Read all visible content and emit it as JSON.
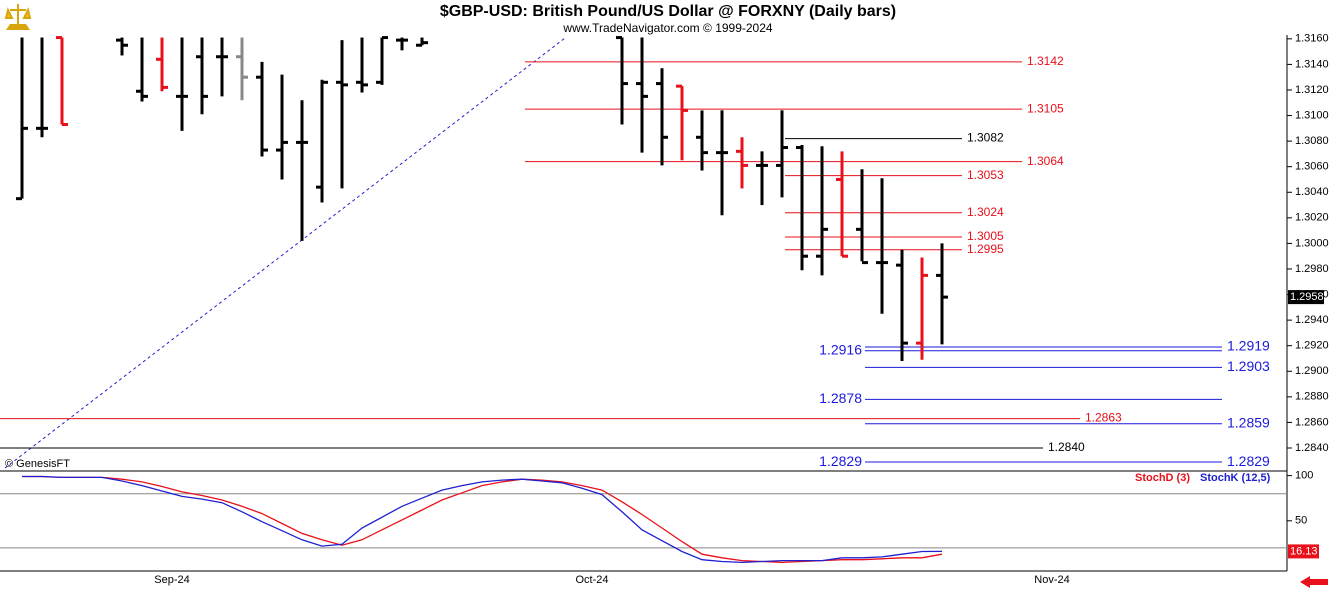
{
  "header": {
    "title": "$GBP-USD:  British Pound/US Dollar @ FORXNY  (Daily bars)",
    "subtitle": "www.TradeNavigator.com © 1999-2024",
    "credit": "© GenesisFT"
  },
  "chart_data": [
    {
      "type": "ohlc",
      "categories": [
        null,
        null,
        null,
        null,
        null,
        null,
        null,
        "Sep-24",
        null,
        null,
        null,
        null,
        null,
        null,
        null,
        null,
        null,
        null,
        null,
        null,
        null,
        null,
        null,
        null,
        null,
        null,
        null,
        null,
        "Oct-24",
        null,
        null,
        null,
        null,
        null,
        null,
        null,
        null,
        null,
        null,
        null,
        null,
        null,
        null,
        null,
        null,
        null,
        null,
        null,
        null,
        null,
        null,
        "Nov-24",
        null,
        null,
        null,
        null,
        null,
        null,
        null,
        null,
        null,
        null,
        null,
        null
      ],
      "opens": [
        1.3035,
        1.309,
        1.3161,
        null,
        null,
        1.3159,
        1.3119,
        1.3144,
        1.3115,
        1.3146,
        1.3146,
        1.3146,
        1.313,
        1.3073,
        1.3079,
        1.3044,
        1.3126,
        1.3126,
        1.3126,
        1.3159,
        1.3155,
        null,
        null,
        null,
        null,
        null,
        null,
        null,
        null,
        null,
        1.3161,
        1.3125,
        1.3125,
        1.3123,
        1.3083,
        1.3071,
        1.3072,
        1.3061,
        1.3061,
        1.3075,
        1.299,
        1.305,
        1.3011,
        1.2985,
        1.2983,
        1.2922,
        1.2975,
        null,
        null,
        null,
        null,
        null,
        null,
        null,
        null,
        null,
        null,
        null,
        null,
        null,
        null,
        null,
        null,
        null
      ],
      "highs": [
        1.3161,
        1.3161,
        1.3161,
        null,
        null,
        1.3161,
        1.3161,
        1.3161,
        1.3161,
        1.3161,
        1.3161,
        1.3161,
        1.3142,
        1.3132,
        1.3112,
        1.3128,
        1.3159,
        1.3161,
        1.3161,
        1.3161,
        1.3161,
        null,
        null,
        null,
        null,
        null,
        null,
        null,
        null,
        null,
        1.3161,
        1.3161,
        1.3137,
        1.3123,
        1.3104,
        1.3104,
        1.3083,
        1.3072,
        1.3104,
        1.3077,
        1.3076,
        1.3072,
        1.3058,
        1.3051,
        1.2995,
        1.2989,
        1.3,
        null,
        null,
        null,
        null,
        null,
        null,
        null,
        null,
        null,
        null,
        null,
        null,
        null,
        null,
        null,
        null,
        null
      ],
      "lows": [
        1.3035,
        1.3083,
        1.3093,
        null,
        null,
        1.3147,
        1.3111,
        1.3119,
        1.3088,
        1.3101,
        1.3115,
        1.3112,
        1.3068,
        1.305,
        1.3002,
        1.3032,
        1.3043,
        1.3118,
        1.3124,
        1.3151,
        1.3155,
        null,
        null,
        null,
        null,
        null,
        null,
        null,
        null,
        null,
        1.3093,
        1.3071,
        1.3061,
        1.3065,
        1.3057,
        1.3022,
        1.3043,
        1.303,
        1.3036,
        1.2979,
        1.2975,
        1.299,
        1.2986,
        1.2945,
        1.2908,
        1.2909,
        1.2921,
        null,
        null,
        null,
        null,
        null,
        null,
        null,
        null,
        null,
        null,
        null,
        null,
        null,
        null,
        null,
        null,
        null
      ],
      "closes": [
        1.309,
        1.309,
        1.3093,
        null,
        null,
        1.3155,
        1.3115,
        1.3122,
        1.3115,
        1.3115,
        1.3146,
        1.313,
        1.3073,
        1.3079,
        1.3079,
        1.3126,
        1.3124,
        1.3124,
        1.3161,
        1.3159,
        1.3157,
        null,
        null,
        null,
        null,
        null,
        null,
        null,
        null,
        null,
        1.3125,
        1.3115,
        1.3083,
        1.3104,
        1.3071,
        1.3071,
        1.3061,
        1.3061,
        1.3075,
        1.299,
        1.3011,
        1.299,
        1.2985,
        1.2985,
        1.2922,
        1.2975,
        1.2958,
        null,
        null,
        null,
        null,
        null,
        null,
        null,
        null,
        null,
        null,
        null,
        null,
        null,
        null,
        null,
        null,
        null
      ],
      "bar_colors": [
        "#000000",
        "#000000",
        "#e8101a",
        null,
        null,
        "#000000",
        "#000000",
        "#e8101a",
        "#000000",
        "#000000",
        "#000000",
        "#888888",
        "#000000",
        "#000000",
        "#000000",
        "#000000",
        "#000000",
        "#000000",
        "#000000",
        "#000000",
        "#000000",
        null,
        null,
        null,
        null,
        null,
        null,
        null,
        null,
        null,
        "#000000",
        "#000000",
        "#000000",
        "#e8101a",
        "#000000",
        "#000000",
        "#e8101a",
        "#000000",
        "#000000",
        "#000000",
        "#000000",
        "#e8101a",
        "#000000",
        "#000000",
        "#000000",
        "#e8101a",
        "#000000",
        null,
        null,
        null,
        null,
        null,
        null,
        null,
        null,
        null,
        null,
        null,
        null,
        null,
        null,
        null,
        null,
        null
      ],
      "ylim": [
        1.2822,
        1.3163
      ],
      "yticks": [
        {
          "value": 1.284,
          "label": "1.2840"
        },
        {
          "value": 1.286,
          "label": "1.2860"
        },
        {
          "value": 1.288,
          "label": "1.2880"
        },
        {
          "value": 1.29,
          "label": "1.2900"
        },
        {
          "value": 1.292,
          "label": "1.2920"
        },
        {
          "value": 1.294,
          "label": "1.2940"
        },
        {
          "value": 1.296,
          "label": "1.2960"
        },
        {
          "value": 1.298,
          "label": "1.2980"
        },
        {
          "value": 1.3,
          "label": "1.3000"
        },
        {
          "value": 1.302,
          "label": "1.3020"
        },
        {
          "value": 1.304,
          "label": "1.3040"
        },
        {
          "value": 1.306,
          "label": "1.3060"
        },
        {
          "value": 1.308,
          "label": "1.3080"
        },
        {
          "value": 1.31,
          "label": "1.3100"
        },
        {
          "value": 1.312,
          "label": "1.3120"
        },
        {
          "value": 1.314,
          "label": "1.3140"
        },
        {
          "value": 1.316,
          "label": "1.3160"
        }
      ],
      "levels": [
        {
          "value": 1.3142,
          "color": "#e8101a"
        },
        {
          "value": 1.3105,
          "color": "#e8101a"
        },
        {
          "value": 1.3064,
          "color": "#e8101a"
        },
        {
          "value": 1.3082,
          "color": "#000000"
        },
        {
          "value": 1.3053,
          "color": "#e8101a"
        },
        {
          "value": 1.3024,
          "color": "#e8101a"
        },
        {
          "value": 1.3005,
          "color": "#e8101a"
        },
        {
          "value": 1.2995,
          "color": "#e8101a"
        },
        {
          "value": 1.2919,
          "color": "#1a1adc"
        },
        {
          "value": 1.2916,
          "color": "#1a1adc"
        },
        {
          "value": 1.2903,
          "color": "#1a1adc"
        },
        {
          "value": 1.2878,
          "color": "#1a1adc"
        },
        {
          "value": 1.2863,
          "color": "#e8101a"
        },
        {
          "value": 1.2859,
          "color": "#1a1adc"
        },
        {
          "value": 1.284,
          "label": "1.2840",
          "color": "#000000"
        },
        {
          "value": 1.2829,
          "color": "#1a1adc"
        }
      ]
    },
    {
      "type": "line",
      "series": [
        {
          "name": "StochD (3)",
          "color": "#e8101a",
          "values": [
            99,
            99,
            98,
            98,
            98,
            96,
            93,
            88,
            82,
            78,
            73,
            66,
            58,
            47,
            36,
            29,
            23,
            29,
            40,
            51,
            62,
            73,
            81,
            89,
            93,
            96,
            95,
            93,
            89,
            84,
            71,
            57,
            42,
            27,
            13,
            9,
            6,
            5,
            4,
            5,
            6,
            7,
            7,
            8,
            9,
            9,
            13,
            null,
            null,
            null,
            null,
            null,
            null,
            null,
            null,
            null,
            null,
            null,
            null,
            null,
            null,
            null,
            null,
            null
          ]
        },
        {
          "name": "StochK (12,5)",
          "color": "#2020d0",
          "values": [
            99,
            99,
            98,
            98,
            98,
            94,
            89,
            83,
            77,
            74,
            70,
            60,
            49,
            39,
            29,
            22,
            24,
            42,
            54,
            66,
            75,
            84,
            89,
            93,
            95,
            96,
            94,
            92,
            86,
            79,
            60,
            40,
            28,
            16,
            7,
            5,
            4,
            5,
            6,
            6,
            6,
            9,
            9,
            10,
            13,
            16,
            16.13,
            null,
            null,
            null,
            null,
            null,
            null,
            null,
            null,
            null,
            null,
            null,
            null,
            null,
            null,
            null,
            null,
            null
          ]
        }
      ],
      "ylim": [
        -5,
        104
      ],
      "yticks": [
        50,
        100
      ],
      "guide_lines": [
        20,
        80
      ]
    }
  ]
}
